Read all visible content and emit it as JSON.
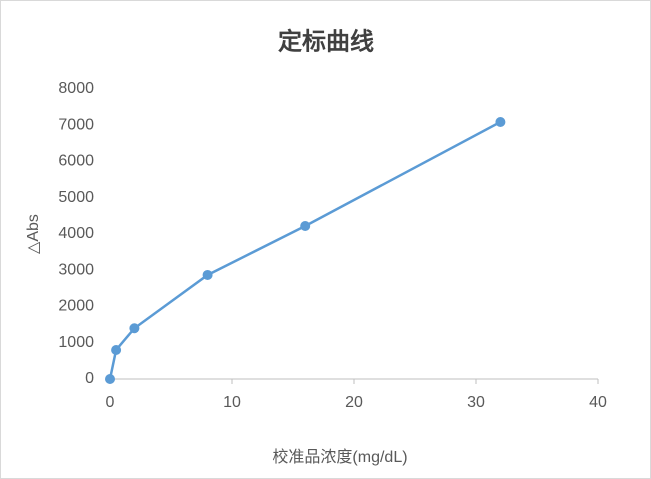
{
  "chart_data": {
    "type": "line",
    "title": "定标曲线",
    "x_label": "校准品浓度(mg/dL)",
    "y_label": "△Abs",
    "x": [
      0,
      0.5,
      2,
      8,
      16,
      32
    ],
    "series": [
      {
        "color": "#5b9bd5",
        "values": [
          0,
          800,
          1400,
          2870,
          4220,
          7090
        ]
      }
    ],
    "xlim": [
      0,
      40
    ],
    "xticks": [
      0,
      10,
      20,
      30,
      40
    ],
    "ylim": [
      0,
      8000
    ],
    "yticks": [
      0,
      1000,
      2000,
      3000,
      4000,
      5000,
      6000,
      7000,
      8000
    ],
    "grid": false
  }
}
